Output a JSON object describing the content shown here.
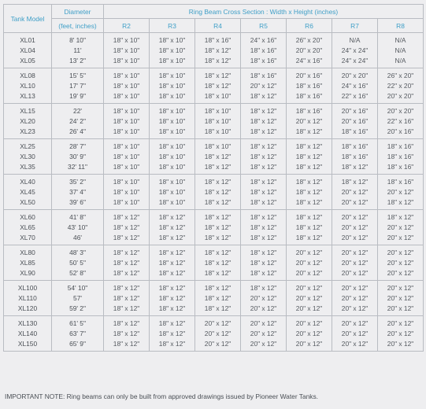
{
  "header": {
    "tank_model": "Tank Model",
    "diameter": "Diameter",
    "diameter_unit": "(feet, inches)",
    "cross_section": "Ring Beam Cross Section : Width x Height (inches)",
    "columns": [
      "R2",
      "R3",
      "R4",
      "R5",
      "R6",
      "R7",
      "R8"
    ]
  },
  "groups": [
    {
      "models": [
        "XL01",
        "XL04",
        "XL05"
      ],
      "diameters": [
        "8' 10\"",
        "11'",
        "13' 2\""
      ],
      "cells": [
        [
          "18\" x 10\"",
          "18\" x 10\"",
          "18\" x 10\""
        ],
        [
          "18\" x 10\"",
          "18\" x 10\"",
          "18\" x 10\""
        ],
        [
          "18\" x 16\"",
          "18\" x 12\"",
          "18\" x 12\""
        ],
        [
          "24\" x 16\"",
          "18\" x 16\"",
          "18\" x 16\""
        ],
        [
          "26\" x 20\"",
          "20\" x 20\"",
          "24\" x 16\""
        ],
        [
          "N/A",
          "24\" x 24\"",
          "24\" x 24\""
        ],
        [
          "N/A",
          "N/A",
          "N/A"
        ]
      ]
    },
    {
      "models": [
        "XL08",
        "XL10",
        "XL13"
      ],
      "diameters": [
        "15' 5\"",
        "17' 7\"",
        "19' 9\""
      ],
      "cells": [
        [
          "18\" x 10\"",
          "18\" x 10\"",
          "18\" x 10\""
        ],
        [
          "18\" x 10\"",
          "18\" x 10\"",
          "18\" x 10\""
        ],
        [
          "18\" x 12\"",
          "18\" x 12\"",
          "18\" x 10\""
        ],
        [
          "18\" x 16\"",
          "20\" x 12\"",
          "18\" x 12\""
        ],
        [
          "20\" x 16\"",
          "18\" x 16\"",
          "18\" x 16\""
        ],
        [
          "20\" x 20\"",
          "24\" x 16\"",
          "22\" x 16\""
        ],
        [
          "26\" x 20\"",
          "22\" x 20\"",
          "20\" x 20\""
        ]
      ]
    },
    {
      "models": [
        "XL15",
        "XL20",
        "XL23"
      ],
      "diameters": [
        "22'",
        "24' 2\"",
        "26' 4\""
      ],
      "cells": [
        [
          "18\" x 10\"",
          "18\" x 10\"",
          "18\" x 10\""
        ],
        [
          "18\" x 10\"",
          "18\" x 10\"",
          "18\" x 10\""
        ],
        [
          "18\" x 10\"",
          "18\" x 10\"",
          "18\" x 10\""
        ],
        [
          "18\" x 12\"",
          "18\" x 12\"",
          "18\" x 12\""
        ],
        [
          "18\" x 16\"",
          "20\" x 12\"",
          "18\" x 12\""
        ],
        [
          "20\" x 16\"",
          "20\" x 16\"",
          "18\" x 16\""
        ],
        [
          "20\" x 20\"",
          "22\" x 16\"",
          "20\" x 16\""
        ]
      ]
    },
    {
      "models": [
        "XL25",
        "XL30",
        "XL35"
      ],
      "diameters": [
        "28' 7\"",
        "30' 9\"",
        "32' 11\""
      ],
      "cells": [
        [
          "18\" x 10\"",
          "18\" x 10\"",
          "18\" x 10\""
        ],
        [
          "18\" x 10\"",
          "18\" x 10\"",
          "18\" x 10\""
        ],
        [
          "18\" x 10\"",
          "18\" x 12\"",
          "18\" x 12\""
        ],
        [
          "18\" x 12\"",
          "18\" x 12\"",
          "18\" x 12\""
        ],
        [
          "18\" x 12\"",
          "18\" x 12\"",
          "18\" x 12\""
        ],
        [
          "18\" x 16\"",
          "18\" x 16\"",
          "18\" x 12\""
        ],
        [
          "18\" x 16\"",
          "18\" x 16\"",
          "18\" x 16\""
        ]
      ]
    },
    {
      "models": [
        "XL40",
        "XL45",
        "XL50"
      ],
      "diameters": [
        "35' 2\"",
        "37' 4\"",
        "39' 6\""
      ],
      "cells": [
        [
          "18\" x 10\"",
          "18\" x 10\"",
          "18\" x 10\""
        ],
        [
          "18\" x 10\"",
          "18\" x 10\"",
          "18\" x 10\""
        ],
        [
          "18\" x 12\"",
          "18\" x 12\"",
          "18\" x 12\""
        ],
        [
          "18\" x 12\"",
          "18\" x 12\"",
          "18\" x 12\""
        ],
        [
          "18\" x 12\"",
          "18\" x 12\"",
          "18\" x 12\""
        ],
        [
          "18\" x 12\"",
          "20\" x 12\"",
          "20\" x 12\""
        ],
        [
          "18\" x 16\"",
          "20\" x 12\"",
          "18\" x 12\""
        ]
      ]
    },
    {
      "models": [
        "XL60",
        "XL65",
        "XL70"
      ],
      "diameters": [
        "41' 8\"",
        "43' 10\"",
        "46'"
      ],
      "cells": [
        [
          "18\" x 12\"",
          "18\" x 12\"",
          "18\" x 12\""
        ],
        [
          "18\" x 12\"",
          "18\" x 12\"",
          "18\" x 12\""
        ],
        [
          "18\" x 12\"",
          "18\" x 12\"",
          "18\" x 12\""
        ],
        [
          "18\" x 12\"",
          "18\" x 12\"",
          "18\" x 12\""
        ],
        [
          "18\" x 12\"",
          "18\" x 12\"",
          "18\" x 12\""
        ],
        [
          "20\" x 12\"",
          "20\" x 12\"",
          "20\" x 12\""
        ],
        [
          "18\" x 12\"",
          "20\" x 12\"",
          "20\" x 12\""
        ]
      ]
    },
    {
      "models": [
        "XL80",
        "XL85",
        "XL90"
      ],
      "diameters": [
        "48' 3\"",
        "50' 5\"",
        "52' 8\""
      ],
      "cells": [
        [
          "18\" x 12\"",
          "18\" x 12\"",
          "18\" x 12\""
        ],
        [
          "18\" x 12\"",
          "18\" x 12\"",
          "18\" x 12\""
        ],
        [
          "18\" x 12\"",
          "18\" x 12\"",
          "18\" x 12\""
        ],
        [
          "18\" x 12\"",
          "18\" x 12\"",
          "18\" x 12\""
        ],
        [
          "20\" x 12\"",
          "20\" x 12\"",
          "20\" x 12\""
        ],
        [
          "20\" x 12\"",
          "20\" x 12\"",
          "20\" x 12\""
        ],
        [
          "20\" x 12\"",
          "20\" x 12\"",
          "20\" x 12\""
        ]
      ]
    },
    {
      "models": [
        "XL100",
        "XL110",
        "XL120"
      ],
      "diameters": [
        "54' 10\"",
        "57'",
        "59' 2\""
      ],
      "cells": [
        [
          "18\" x 12\"",
          "18\" x 12\"",
          "18\" x 12\""
        ],
        [
          "18\" x 12\"",
          "18\" x 12\"",
          "18\" x 12\""
        ],
        [
          "18\" x 12\"",
          "18\" x 12\"",
          "18\" x 12\""
        ],
        [
          "18\" x 12\"",
          "20\" x 12\"",
          "20\" x 12\""
        ],
        [
          "20\" x 12\"",
          "20\" x 12\"",
          "20\" x 12\""
        ],
        [
          "20\" x 12\"",
          "20\" x 12\"",
          "20\" x 12\""
        ],
        [
          "20\" x 12\"",
          "20\" x 12\"",
          "20\" x 12\""
        ]
      ]
    },
    {
      "models": [
        "XL130",
        "XL140",
        "XL150"
      ],
      "diameters": [
        "61' 5\"",
        "63' 7\"",
        "65' 9\""
      ],
      "cells": [
        [
          "18\" x 12\"",
          "18\" x 12\"",
          "18\" x 12\""
        ],
        [
          "18\" x 12\"",
          "18\" x 12\"",
          "18\" x 12\""
        ],
        [
          "20\" x 12\"",
          "20\" x 12\"",
          "20\" x 12\""
        ],
        [
          "20\" x 12\"",
          "20\" x 12\"",
          "20\" x 12\""
        ],
        [
          "20\" x 12\"",
          "20\" x 12\"",
          "20\" x 12\""
        ],
        [
          "20\" x 12\"",
          "20\" x 12\"",
          "20\" x 12\""
        ],
        [
          "20\" x 12\"",
          "20\" x 12\"",
          "20\" x 12\""
        ]
      ]
    }
  ],
  "note": "IMPORTANT NOTE: Ring beams can only be built from approved drawings issued by Pioneer Water Tanks."
}
